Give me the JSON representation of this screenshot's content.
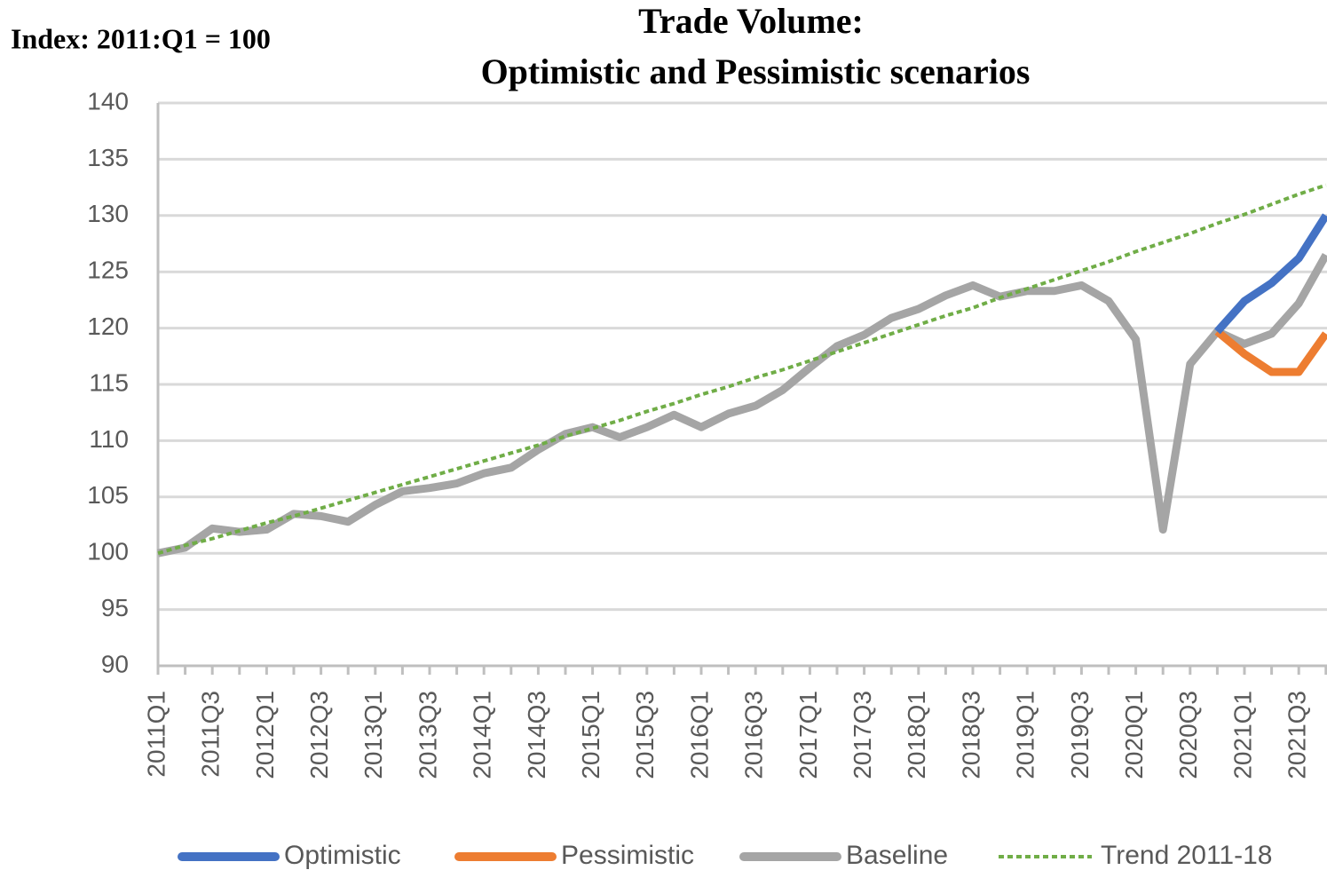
{
  "chart_data": {
    "type": "line",
    "title": [
      "Trade Volume:",
      "Optimistic and Pessimistic scenarios"
    ],
    "y_label": "Index: 2011:Q1 = 100",
    "categories": [
      "2011Q1",
      null,
      "2011Q3",
      null,
      "2012Q1",
      null,
      "2012Q3",
      null,
      "2013Q1",
      null,
      "2013Q3",
      null,
      "2014Q1",
      null,
      "2014Q3",
      null,
      "2015Q1",
      null,
      "2015Q3",
      null,
      "2016Q1",
      null,
      "2016Q3",
      null,
      "2017Q1",
      null,
      "2017Q3",
      null,
      "2018Q1",
      null,
      "2018Q3",
      null,
      "2019Q1",
      null,
      "2019Q3",
      null,
      "2020Q1",
      null,
      "2020Q3",
      null,
      "2021Q1",
      null,
      "2021Q3",
      null
    ],
    "series": [
      {
        "name": "Optimistic",
        "color": "#4472c4",
        "values": [
          null,
          null,
          null,
          null,
          null,
          null,
          null,
          null,
          null,
          null,
          null,
          null,
          null,
          null,
          null,
          null,
          null,
          null,
          null,
          null,
          null,
          null,
          null,
          null,
          null,
          null,
          null,
          null,
          null,
          null,
          null,
          null,
          null,
          null,
          null,
          null,
          null,
          null,
          null,
          119.7,
          122.4,
          124.0,
          126.2,
          130.0
        ]
      },
      {
        "name": "Pessimistic",
        "color": "#ed7d31",
        "values": [
          null,
          null,
          null,
          null,
          null,
          null,
          null,
          null,
          null,
          null,
          null,
          null,
          null,
          null,
          null,
          null,
          null,
          null,
          null,
          null,
          null,
          null,
          null,
          null,
          null,
          null,
          null,
          null,
          null,
          null,
          null,
          null,
          null,
          null,
          null,
          null,
          null,
          null,
          null,
          119.7,
          117.7,
          116.1,
          116.1,
          119.5
        ]
      },
      {
        "name": "Baseline",
        "color": "#a5a5a5",
        "values": [
          100.0,
          100.5,
          102.2,
          101.9,
          102.1,
          103.5,
          103.3,
          102.8,
          104.3,
          105.5,
          105.8,
          106.2,
          107.1,
          107.6,
          109.2,
          110.6,
          111.2,
          110.3,
          111.2,
          112.3,
          111.2,
          112.4,
          113.1,
          114.5,
          116.5,
          118.4,
          119.4,
          120.9,
          121.7,
          122.9,
          123.8,
          122.8,
          123.3,
          123.3,
          123.8,
          122.4,
          119.0,
          102.1,
          116.8,
          119.7,
          118.6,
          119.5,
          122.2,
          126.5
        ]
      },
      {
        "name": "Trend 2011-18",
        "color": "#70ad47",
        "style": "dotted",
        "values": [
          100.0,
          100.7,
          101.3,
          102.0,
          102.7,
          103.3,
          104.0,
          104.7,
          105.4,
          106.1,
          106.8,
          107.5,
          108.2,
          108.9,
          109.6,
          110.4,
          111.1,
          111.8,
          112.6,
          113.3,
          114.1,
          114.8,
          115.6,
          116.3,
          117.1,
          117.9,
          118.7,
          119.5,
          120.3,
          121.1,
          121.8,
          122.7,
          123.5,
          124.3,
          125.1,
          125.9,
          126.8,
          127.6,
          128.4,
          129.3,
          130.1,
          131.0,
          131.9,
          132.7
        ]
      }
    ],
    "ylim": [
      90,
      140
    ],
    "yticks": [
      90,
      95,
      100,
      105,
      110,
      115,
      120,
      125,
      130,
      135,
      140
    ],
    "grid": true
  }
}
